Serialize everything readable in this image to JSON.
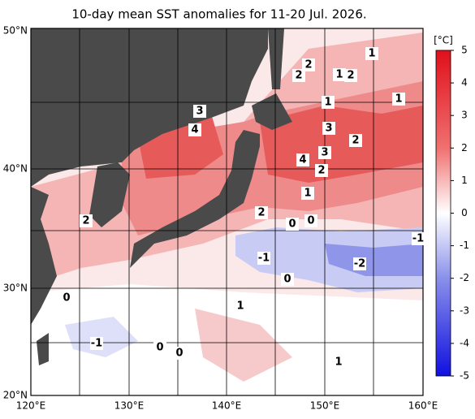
{
  "title": "10-day mean SST anomalies for 11-20 Jul. 2026.",
  "x_labels": [
    "120°E",
    "130°E",
    "140°E",
    "150°E",
    "160°E"
  ],
  "y_labels": [
    "50°N",
    "40°N",
    "30°N",
    "20°N"
  ],
  "colorbar": {
    "unit": "[°C]",
    "lim": [
      -5,
      5
    ],
    "ticks": [
      5,
      4,
      3,
      2,
      1,
      0,
      -1,
      -2,
      -3,
      -4,
      -5
    ]
  },
  "contour_labels": [
    1,
    2,
    2,
    1,
    2,
    1,
    1,
    3,
    4,
    3,
    2,
    3,
    4,
    2,
    1,
    2,
    2,
    0,
    0,
    -1,
    -1,
    -2,
    0,
    0,
    1,
    -1,
    0,
    0,
    1
  ]
}
